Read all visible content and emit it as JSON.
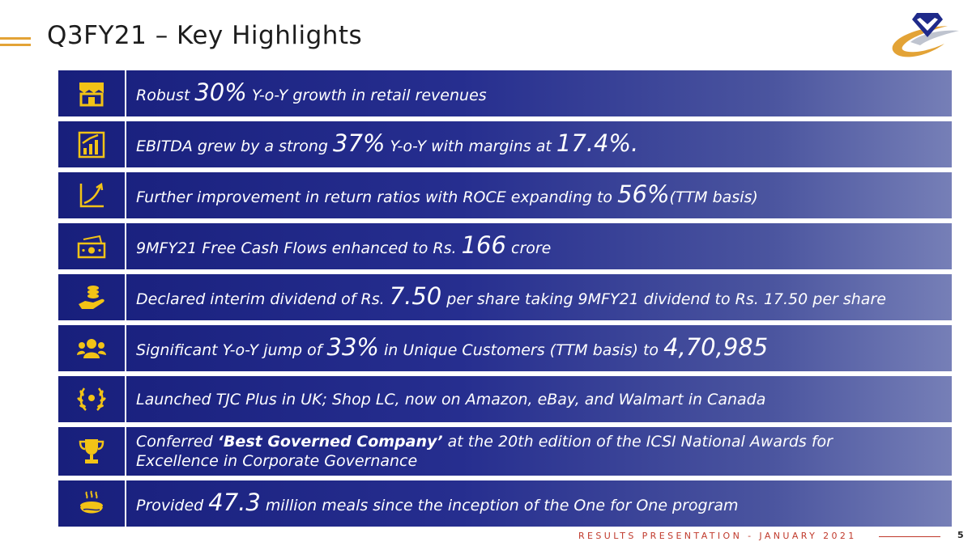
{
  "header": {
    "title": "Q3FY21 – Key Highlights"
  },
  "highlights": [
    {
      "icon": "store-icon",
      "parts": [
        "Robust ",
        "30%",
        " Y-o-Y growth in retail revenues"
      ]
    },
    {
      "icon": "growth-chart-icon",
      "parts": [
        "EBITDA grew by a strong ",
        "37%",
        " Y-o-Y with margins at ",
        "17.4%."
      ]
    },
    {
      "icon": "trend-arrow-icon",
      "parts": [
        "Further improvement in return ratios with ROCE expanding to ",
        "56%",
        "(TTM basis)"
      ]
    },
    {
      "icon": "cash-icon",
      "parts": [
        "9MFY21 Free Cash Flows enhanced to Rs. ",
        "166",
        " crore"
      ]
    },
    {
      "icon": "dividend-hand-icon",
      "parts": [
        "Declared interim dividend of Rs. ",
        "7.50",
        " per share taking 9MFY21 dividend to Rs. 17.50 per share"
      ]
    },
    {
      "icon": "customers-icon",
      "parts": [
        "Significant Y-o-Y jump of ",
        "33%",
        " in Unique Customers (TTM basis) to ",
        "4,70,985"
      ]
    },
    {
      "icon": "laurel-icon",
      "parts": [
        "Launched TJC Plus in UK; Shop LC, now on Amazon, eBay, and Walmart in Canada"
      ]
    },
    {
      "icon": "trophy-icon",
      "lines": [
        [
          "Conferred ",
          "‘Best Governed Company’",
          " at the 20th edition of the ICSI National Awards for"
        ],
        [
          "Excellence in Corporate Governance"
        ]
      ]
    },
    {
      "icon": "meal-bowl-icon",
      "parts": [
        "Provided ",
        "47.3",
        " million meals since the inception of the One for One program"
      ]
    }
  ],
  "footer": {
    "text": "RESULTS PRESENTATION - JANUARY 2021",
    "page": "5"
  },
  "colors": {
    "accent": "#e3a336",
    "band_dark": "#181f7c",
    "band_light": "#767fb7",
    "footer": "#c0392b",
    "icon": "#f2c316"
  }
}
